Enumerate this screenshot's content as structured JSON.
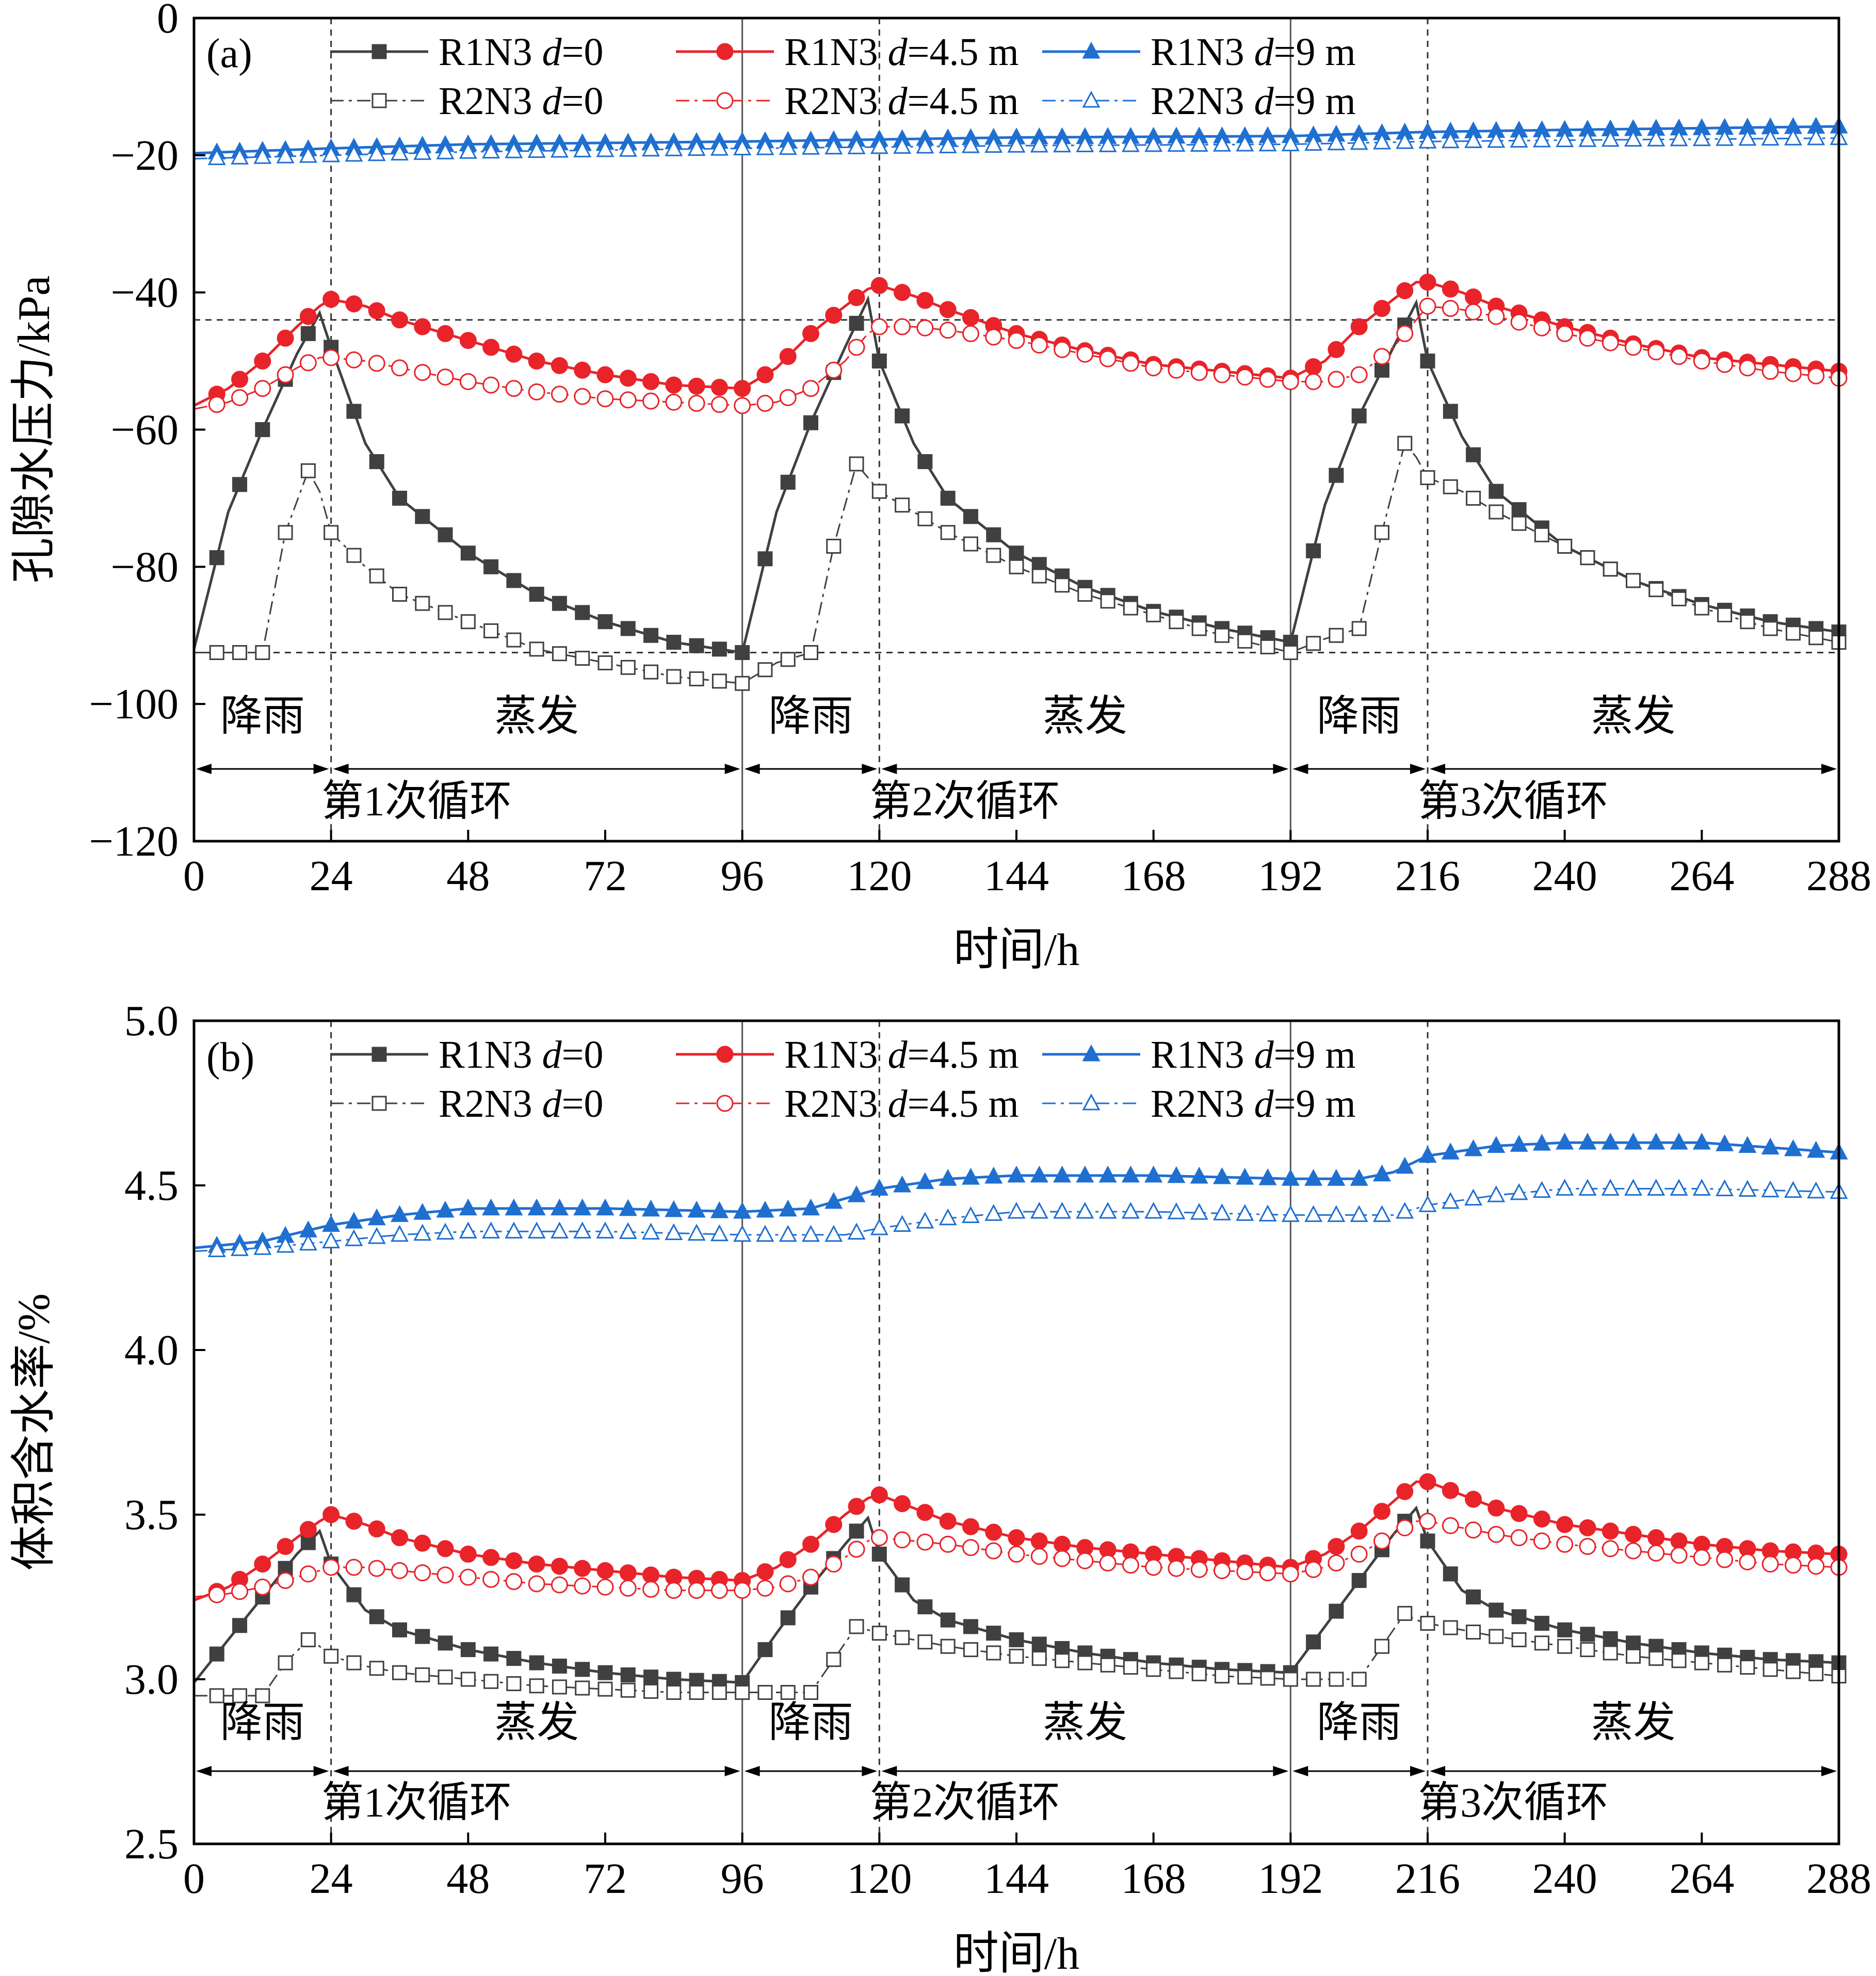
{
  "chart_data": [
    {
      "type": "line",
      "panel_label": "(a)",
      "xlabel": "时间/h",
      "ylabel": "孔隙水压力/kPa",
      "xlim": [
        0,
        288
      ],
      "ylim": [
        -120,
        0
      ],
      "xticks": [
        "0",
        "24",
        "48",
        "72",
        "96",
        "120",
        "144",
        "168",
        "192",
        "216",
        "240",
        "264",
        "288"
      ],
      "yticks": [
        "0",
        "−20",
        "−40",
        "−60",
        "−80",
        "−100",
        "−120"
      ],
      "reference_lines_y": [
        -44,
        -92.5
      ],
      "phase_labels": {
        "rain": "降雨",
        "evap": "蒸发"
      },
      "cycle_labels": [
        "第1次循环",
        "第2次循环",
        "第3次循环"
      ],
      "series": [
        {
          "name": "R1N3 d=0",
          "prefix": "R1N3 ",
          "d": "d",
          "suffix": "=0",
          "color": "#404040",
          "marker": "square",
          "filled": true,
          "dashed": false,
          "x": [
            0,
            6,
            12,
            18,
            22,
            24,
            30,
            36,
            48,
            60,
            72,
            84,
            96,
            102,
            108,
            114,
            118,
            120,
            126,
            132,
            144,
            156,
            168,
            180,
            192,
            198,
            204,
            210,
            214,
            216,
            222,
            228,
            240,
            252,
            264,
            276,
            288
          ],
          "y": [
            -92,
            -72,
            -60,
            -49,
            -43,
            -48,
            -62,
            -70,
            -78,
            -84,
            -88,
            -91,
            -92.5,
            -72,
            -59,
            -48,
            -41,
            -50,
            -62,
            -70,
            -78,
            -83,
            -86.5,
            -89,
            -91,
            -71,
            -58,
            -48,
            -41.5,
            -50,
            -61,
            -69,
            -77,
            -82,
            -85.5,
            -88,
            -89.5
          ]
        },
        {
          "name": "R2N3 d=0",
          "prefix": "R2N3 ",
          "d": "d",
          "suffix": "=0",
          "color": "#404040",
          "marker": "square",
          "filled": false,
          "dashed": true,
          "x": [
            0,
            6,
            12,
            16,
            20,
            22,
            24,
            30,
            36,
            48,
            60,
            72,
            84,
            96,
            102,
            108,
            112,
            116,
            118,
            120,
            126,
            132,
            144,
            156,
            168,
            180,
            192,
            198,
            204,
            208,
            212,
            214,
            216,
            222,
            228,
            240,
            252,
            264,
            276,
            288
          ],
          "y": [
            -92.5,
            -92.5,
            -92.5,
            -75,
            -66,
            -69,
            -75,
            -80,
            -84,
            -88,
            -92,
            -94,
            -96,
            -97,
            -94,
            -92.5,
            -77,
            -65,
            -67,
            -69,
            -72,
            -75,
            -80,
            -84,
            -87,
            -90,
            -92.5,
            -90.5,
            -89,
            -75,
            -62,
            -64,
            -67,
            -69,
            -72,
            -77,
            -82,
            -86,
            -89,
            -91
          ]
        },
        {
          "name": "R1N3 d=4.5 m",
          "prefix": "R1N3 ",
          "d": "d",
          "suffix": "=4.5 m",
          "color": "#e8242a",
          "marker": "circle",
          "filled": true,
          "dashed": false,
          "x": [
            0,
            6,
            12,
            18,
            22,
            24,
            30,
            36,
            48,
            60,
            72,
            84,
            96,
            102,
            108,
            114,
            118,
            120,
            126,
            132,
            144,
            156,
            168,
            180,
            192,
            198,
            204,
            210,
            214,
            216,
            222,
            228,
            240,
            252,
            264,
            276,
            288
          ],
          "y": [
            -56.5,
            -54,
            -50,
            -45,
            -42,
            -41,
            -42,
            -44,
            -47,
            -50,
            -52,
            -53.5,
            -54,
            -51,
            -46,
            -42,
            -39.5,
            -39,
            -40.5,
            -42.5,
            -46,
            -48.5,
            -50.5,
            -51.5,
            -52.5,
            -50,
            -45,
            -41,
            -38.5,
            -38.5,
            -40,
            -42,
            -45,
            -47.5,
            -49.5,
            -50.5,
            -51.5
          ]
        },
        {
          "name": "R2N3 d=4.5 m",
          "prefix": "R2N3 ",
          "d": "d",
          "suffix": "=4.5 m",
          "color": "#e8242a",
          "marker": "circle",
          "filled": false,
          "dashed": true,
          "x": [
            0,
            6,
            12,
            18,
            22,
            24,
            30,
            36,
            48,
            60,
            72,
            84,
            96,
            102,
            108,
            114,
            118,
            120,
            126,
            132,
            144,
            156,
            168,
            180,
            192,
            198,
            204,
            210,
            214,
            216,
            222,
            228,
            240,
            252,
            264,
            276,
            288
          ],
          "y": [
            -57,
            -56,
            -54,
            -51,
            -49.5,
            -49.5,
            -50,
            -51,
            -53,
            -54.5,
            -55.5,
            -56,
            -56.5,
            -56,
            -54,
            -50,
            -46,
            -45,
            -45,
            -45.5,
            -47,
            -49,
            -51,
            -52,
            -53,
            -53,
            -52,
            -48,
            -44,
            -42,
            -42.5,
            -43.5,
            -46,
            -48,
            -50,
            -51.5,
            -52.5
          ]
        },
        {
          "name": "R1N3 d=9 m",
          "prefix": "R1N3 ",
          "d": "d",
          "suffix": "=9 m",
          "color": "#1f6fd1",
          "marker": "triangle",
          "filled": true,
          "dashed": false,
          "x": [
            0,
            24,
            48,
            96,
            120,
            144,
            192,
            216,
            240,
            288
          ],
          "y": [
            -19.7,
            -19,
            -18.4,
            -18,
            -17.7,
            -17.4,
            -17.2,
            -16.6,
            -16.3,
            -15.8
          ]
        },
        {
          "name": "R2N3 d=9 m",
          "prefix": "R2N3 ",
          "d": "d",
          "suffix": "=9 m",
          "color": "#1f6fd1",
          "marker": "triangle",
          "filled": false,
          "dashed": true,
          "x": [
            0,
            24,
            48,
            96,
            120,
            144,
            192,
            216,
            240,
            288
          ],
          "y": [
            -20.5,
            -20,
            -19.5,
            -19,
            -18.8,
            -18.6,
            -18.4,
            -18,
            -17.8,
            -17.5
          ]
        }
      ]
    },
    {
      "type": "line",
      "panel_label": "(b)",
      "xlabel": "时间/h",
      "ylabel": "体积含水率/%",
      "xlim": [
        0,
        288
      ],
      "ylim": [
        2.5,
        5.0
      ],
      "xticks": [
        "0",
        "24",
        "48",
        "72",
        "96",
        "120",
        "144",
        "168",
        "192",
        "216",
        "240",
        "264",
        "288"
      ],
      "yticks": [
        "5.0",
        "4.5",
        "4.0",
        "3.5",
        "3.0",
        "2.5"
      ],
      "reference_lines_y": [],
      "phase_labels": {
        "rain": "降雨",
        "evap": "蒸发"
      },
      "cycle_labels": [
        "第1次循环",
        "第2次循环",
        "第3次循环"
      ],
      "series": [
        {
          "name": "R1N3 d=0",
          "prefix": "R1N3 ",
          "d": "d",
          "suffix": "=0",
          "color": "#404040",
          "marker": "square",
          "filled": true,
          "dashed": false,
          "x": [
            0,
            6,
            12,
            18,
            22,
            24,
            30,
            36,
            48,
            60,
            72,
            84,
            96,
            102,
            108,
            114,
            118,
            120,
            126,
            132,
            144,
            156,
            168,
            180,
            192,
            198,
            204,
            210,
            214,
            216,
            222,
            228,
            240,
            252,
            264,
            276,
            288
          ],
          "y": [
            2.99,
            3.12,
            3.25,
            3.38,
            3.45,
            3.35,
            3.21,
            3.15,
            3.09,
            3.05,
            3.02,
            3.0,
            2.99,
            3.14,
            3.28,
            3.41,
            3.49,
            3.38,
            3.24,
            3.18,
            3.12,
            3.08,
            3.05,
            3.03,
            3.02,
            3.16,
            3.3,
            3.44,
            3.52,
            3.42,
            3.27,
            3.21,
            3.15,
            3.11,
            3.08,
            3.06,
            3.05
          ]
        },
        {
          "name": "R2N3 d=0",
          "prefix": "R2N3 ",
          "d": "d",
          "suffix": "=0",
          "color": "#404040",
          "marker": "square",
          "filled": false,
          "dashed": true,
          "x": [
            0,
            6,
            12,
            16,
            20,
            22,
            24,
            30,
            36,
            48,
            60,
            72,
            84,
            96,
            102,
            108,
            112,
            116,
            118,
            120,
            126,
            132,
            144,
            156,
            168,
            180,
            192,
            198,
            204,
            208,
            212,
            214,
            216,
            222,
            228,
            240,
            252,
            264,
            276,
            288
          ],
          "y": [
            2.95,
            2.95,
            2.95,
            3.05,
            3.12,
            3.1,
            3.07,
            3.04,
            3.02,
            3.0,
            2.98,
            2.97,
            2.96,
            2.96,
            2.96,
            2.96,
            3.06,
            3.16,
            3.15,
            3.14,
            3.12,
            3.1,
            3.07,
            3.05,
            3.03,
            3.01,
            3.0,
            3.0,
            3.0,
            3.1,
            3.2,
            3.18,
            3.17,
            3.15,
            3.13,
            3.1,
            3.07,
            3.05,
            3.03,
            3.01
          ]
        },
        {
          "name": "R1N3 d=4.5 m",
          "prefix": "R1N3 ",
          "d": "d",
          "suffix": "=4.5 m",
          "color": "#e8242a",
          "marker": "circle",
          "filled": true,
          "dashed": false,
          "x": [
            0,
            6,
            12,
            18,
            22,
            24,
            30,
            36,
            48,
            60,
            72,
            84,
            96,
            102,
            108,
            114,
            118,
            120,
            126,
            132,
            144,
            156,
            168,
            180,
            192,
            198,
            204,
            210,
            214,
            216,
            222,
            228,
            240,
            252,
            264,
            276,
            288
          ],
          "y": [
            3.24,
            3.28,
            3.35,
            3.43,
            3.48,
            3.5,
            3.47,
            3.43,
            3.38,
            3.35,
            3.33,
            3.31,
            3.3,
            3.34,
            3.41,
            3.5,
            3.55,
            3.56,
            3.52,
            3.48,
            3.43,
            3.4,
            3.38,
            3.36,
            3.34,
            3.38,
            3.45,
            3.54,
            3.6,
            3.6,
            3.56,
            3.52,
            3.47,
            3.44,
            3.41,
            3.39,
            3.38
          ]
        },
        {
          "name": "R2N3 d=4.5 m",
          "prefix": "R2N3 ",
          "d": "d",
          "suffix": "=4.5 m",
          "color": "#e8242a",
          "marker": "circle",
          "filled": false,
          "dashed": true,
          "x": [
            0,
            6,
            12,
            18,
            22,
            24,
            30,
            36,
            48,
            60,
            72,
            84,
            96,
            102,
            108,
            114,
            118,
            120,
            126,
            132,
            144,
            156,
            168,
            180,
            192,
            198,
            204,
            210,
            214,
            216,
            222,
            228,
            240,
            252,
            264,
            276,
            288
          ],
          "y": [
            3.25,
            3.26,
            3.28,
            3.31,
            3.33,
            3.34,
            3.34,
            3.33,
            3.31,
            3.29,
            3.28,
            3.27,
            3.27,
            3.28,
            3.31,
            3.37,
            3.42,
            3.43,
            3.42,
            3.41,
            3.38,
            3.36,
            3.34,
            3.33,
            3.32,
            3.34,
            3.38,
            3.44,
            3.48,
            3.48,
            3.46,
            3.44,
            3.41,
            3.39,
            3.37,
            3.35,
            3.34
          ]
        },
        {
          "name": "R1N3 d=9 m",
          "prefix": "R1N3 ",
          "d": "d",
          "suffix": "=9 m",
          "color": "#1f6fd1",
          "marker": "triangle",
          "filled": true,
          "dashed": false,
          "x": [
            0,
            12,
            24,
            36,
            48,
            72,
            96,
            108,
            114,
            120,
            132,
            144,
            168,
            192,
            204,
            210,
            216,
            228,
            240,
            264,
            288
          ],
          "y": [
            4.31,
            4.33,
            4.38,
            4.41,
            4.43,
            4.43,
            4.42,
            4.43,
            4.46,
            4.49,
            4.52,
            4.53,
            4.53,
            4.52,
            4.52,
            4.54,
            4.59,
            4.62,
            4.63,
            4.63,
            4.6
          ]
        },
        {
          "name": "R2N3 d=9 m",
          "prefix": "R2N3 ",
          "d": "d",
          "suffix": "=9 m",
          "color": "#1f6fd1",
          "marker": "triangle",
          "filled": false,
          "dashed": true,
          "x": [
            0,
            12,
            24,
            36,
            48,
            72,
            96,
            108,
            114,
            120,
            132,
            144,
            168,
            192,
            204,
            210,
            216,
            228,
            240,
            264,
            288
          ],
          "y": [
            4.3,
            4.31,
            4.33,
            4.35,
            4.36,
            4.36,
            4.35,
            4.35,
            4.35,
            4.37,
            4.4,
            4.42,
            4.42,
            4.41,
            4.41,
            4.41,
            4.44,
            4.47,
            4.49,
            4.49,
            4.48
          ]
        }
      ]
    }
  ]
}
